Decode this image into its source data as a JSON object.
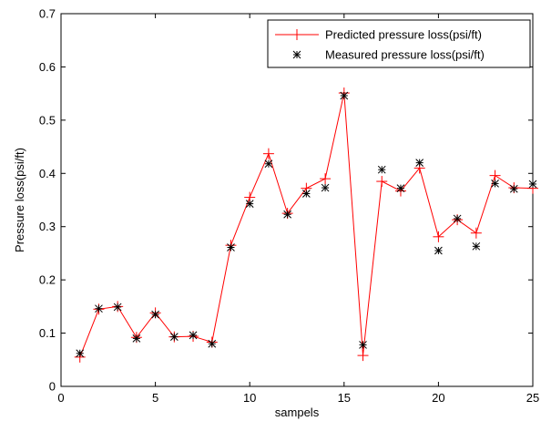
{
  "chart_data": {
    "type": "line",
    "xlabel": "sampels",
    "ylabel": "Pressure loss(psi/ft)",
    "xlim": [
      0,
      25
    ],
    "ylim": [
      0,
      0.7
    ],
    "xticks": [
      "0",
      "5",
      "10",
      "15",
      "20",
      "25"
    ],
    "yticks": [
      "0",
      "0.1",
      "0.2",
      "0.3",
      "0.4",
      "0.5",
      "0.6",
      "0.7"
    ],
    "grid": false,
    "legend_position": "top-right",
    "x": [
      1,
      2,
      3,
      4,
      5,
      6,
      7,
      8,
      9,
      10,
      11,
      12,
      13,
      14,
      15,
      16,
      17,
      18,
      19,
      20,
      21,
      22,
      23,
      24,
      25
    ],
    "series": [
      {
        "name": "Predicted pressure loss(psi/ft)",
        "style": "line-plus",
        "color": "#ff0000",
        "values": [
          0.055,
          0.145,
          0.15,
          0.092,
          0.138,
          0.093,
          0.094,
          0.083,
          0.265,
          0.355,
          0.437,
          0.325,
          0.372,
          0.39,
          0.551,
          0.058,
          0.385,
          0.367,
          0.41,
          0.281,
          0.313,
          0.288,
          0.396,
          0.373,
          0.372
        ]
      },
      {
        "name": "Measured pressure loss(psi/ft)",
        "style": "marker-star",
        "color": "#000000",
        "values": [
          0.062,
          0.146,
          0.149,
          0.09,
          0.135,
          0.093,
          0.096,
          0.08,
          0.261,
          0.343,
          0.418,
          0.323,
          0.362,
          0.373,
          0.546,
          0.078,
          0.407,
          0.372,
          0.42,
          0.255,
          0.315,
          0.263,
          0.381,
          0.371,
          0.38
        ]
      }
    ]
  }
}
